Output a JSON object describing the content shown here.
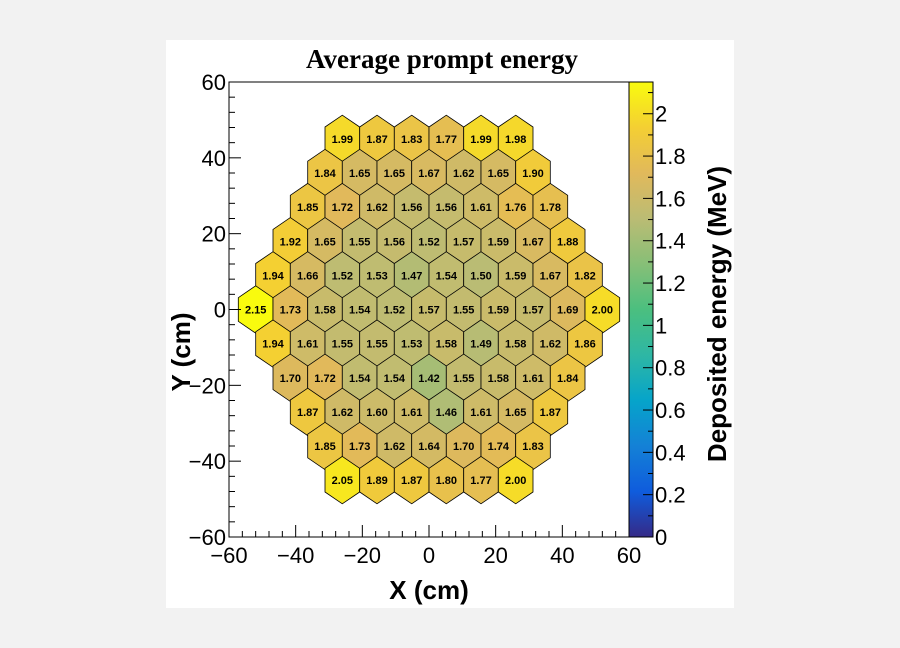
{
  "chart_data": {
    "type": "heatmap",
    "subtype": "hexagonal-grid",
    "title": "Average prompt energy",
    "xlabel": "X (cm)",
    "ylabel": "Y (cm)",
    "zlabel": "Deposited energy (MeV)",
    "xlim": [
      -60,
      60
    ],
    "ylim": [
      -60,
      60
    ],
    "zlim": [
      0,
      2.15
    ],
    "x_ticks": [
      -60,
      -40,
      -20,
      0,
      20,
      40,
      60
    ],
    "y_ticks": [
      -60,
      -40,
      -20,
      0,
      20,
      40,
      60
    ],
    "x_tick_labels": [
      "−60",
      "−40",
      "−20",
      "0",
      "20",
      "40",
      "60"
    ],
    "y_tick_labels": [
      "−60",
      "−40",
      "−20",
      "0",
      "20",
      "40",
      "60"
    ],
    "z_ticks": [
      0,
      0.2,
      0.4,
      0.6,
      0.8,
      1,
      1.2,
      1.4,
      1.6,
      1.8,
      2
    ],
    "z_tick_labels": [
      "0",
      "0.2",
      "0.4",
      "0.6",
      "0.8",
      "1",
      "1.2",
      "1.4",
      "1.6",
      "1.8",
      "2"
    ],
    "hex_pitch_cm": 10.4,
    "rows": [
      {
        "y": 45.0,
        "x0": -26.0,
        "labels": [
          "1.99",
          "1.87",
          "1.83",
          "1.77",
          "1.99",
          "1.98"
        ]
      },
      {
        "y": 36.0,
        "x0": -31.2,
        "labels": [
          "1.84",
          "1.65",
          "1.65",
          "1.67",
          "1.62",
          "1.65",
          "1.90"
        ]
      },
      {
        "y": 27.0,
        "x0": -36.4,
        "labels": [
          "1.85",
          "1.72",
          "1.62",
          "1.56",
          "1.56",
          "1.61",
          "1.76",
          "1.78"
        ]
      },
      {
        "y": 18.0,
        "x0": -41.6,
        "labels": [
          "1.92",
          "1.65",
          "1.55",
          "1.56",
          "1.52",
          "1.57",
          "1.59",
          "1.67",
          "1.88"
        ]
      },
      {
        "y": 9.0,
        "x0": -46.8,
        "labels": [
          "1.94",
          "1.66",
          "1.52",
          "1.53",
          "1.47",
          "1.54",
          "1.50",
          "1.59",
          "1.67",
          "1.82"
        ]
      },
      {
        "y": 0.0,
        "x0": -52.0,
        "labels": [
          "2.15",
          "1.73",
          "1.58",
          "1.54",
          "1.52",
          "1.57",
          "1.55",
          "1.59",
          "1.57",
          "1.69",
          "2.00"
        ]
      },
      {
        "y": -9.0,
        "x0": -46.8,
        "labels": [
          "1.94",
          "1.61",
          "1.55",
          "1.55",
          "1.53",
          "1.58",
          "1.49",
          "1.58",
          "1.62",
          "1.86"
        ]
      },
      {
        "y": -18.0,
        "x0": -41.6,
        "labels": [
          "1.70",
          "1.72",
          "1.54",
          "1.54",
          "1.42",
          "1.55",
          "1.58",
          "1.61",
          "1.84"
        ]
      },
      {
        "y": -27.0,
        "x0": -36.4,
        "labels": [
          "1.87",
          "1.62",
          "1.60",
          "1.61",
          "1.46",
          "1.61",
          "1.65",
          "1.87"
        ]
      },
      {
        "y": -36.0,
        "x0": -31.2,
        "labels": [
          "1.85",
          "1.73",
          "1.62",
          "1.64",
          "1.70",
          "1.74",
          "1.83"
        ]
      },
      {
        "y": -45.0,
        "x0": -26.0,
        "labels": [
          "2.05",
          "1.89",
          "1.87",
          "1.80",
          "1.77",
          "2.00"
        ]
      }
    ]
  }
}
